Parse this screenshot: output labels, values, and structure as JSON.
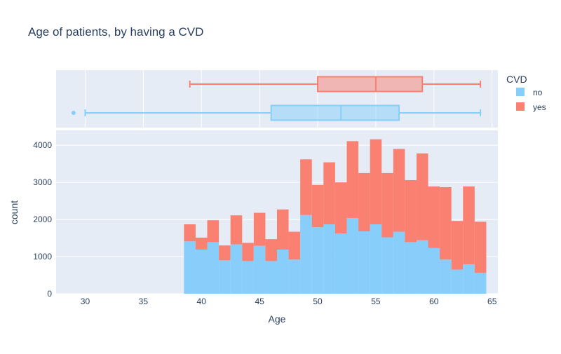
{
  "chart_data": {
    "type": "bar",
    "title": "Age of patients, by having a CVD",
    "xlabel": "Age",
    "ylabel": "count",
    "barmode": "stack",
    "xlim": [
      27.5,
      65.5
    ],
    "ylim": [
      0,
      4400
    ],
    "x_ticks": [
      30,
      35,
      40,
      45,
      50,
      55,
      60,
      65
    ],
    "y_ticks": [
      0,
      1000,
      2000,
      3000,
      4000
    ],
    "grid": true,
    "legend": {
      "title": "CVD",
      "placement": "top-right",
      "entries": [
        "no",
        "yes"
      ]
    },
    "colors": {
      "no": "#87cefa",
      "yes": "#fa8072"
    },
    "bins": [
      {
        "x0": 38.5,
        "x1": 39.5,
        "no": 1410,
        "yes": 460
      },
      {
        "x0": 39.5,
        "x1": 40.5,
        "no": 1190,
        "yes": 320
      },
      {
        "x0": 40.5,
        "x1": 41.5,
        "no": 1390,
        "yes": 590
      },
      {
        "x0": 41.5,
        "x1": 42.5,
        "no": 900,
        "yes": 400
      },
      {
        "x0": 42.5,
        "x1": 43.5,
        "no": 1330,
        "yes": 780
      },
      {
        "x0": 43.5,
        "x1": 44.5,
        "no": 880,
        "yes": 490
      },
      {
        "x0": 44.5,
        "x1": 45.5,
        "no": 1290,
        "yes": 890
      },
      {
        "x0": 45.5,
        "x1": 46.5,
        "no": 880,
        "yes": 590
      },
      {
        "x0": 46.5,
        "x1": 47.5,
        "no": 1190,
        "yes": 1080
      },
      {
        "x0": 47.5,
        "x1": 48.5,
        "no": 920,
        "yes": 750
      },
      {
        "x0": 48.5,
        "x1": 49.5,
        "no": 2120,
        "yes": 1500
      },
      {
        "x0": 49.5,
        "x1": 50.5,
        "no": 1790,
        "yes": 1140
      },
      {
        "x0": 50.5,
        "x1": 51.5,
        "no": 1870,
        "yes": 1670
      },
      {
        "x0": 51.5,
        "x1": 52.5,
        "no": 1620,
        "yes": 1380
      },
      {
        "x0": 52.5,
        "x1": 53.5,
        "no": 2040,
        "yes": 2070
      },
      {
        "x0": 53.5,
        "x1": 54.5,
        "no": 1680,
        "yes": 1570
      },
      {
        "x0": 54.5,
        "x1": 55.5,
        "no": 1870,
        "yes": 2290
      },
      {
        "x0": 55.5,
        "x1": 56.5,
        "no": 1520,
        "yes": 1730
      },
      {
        "x0": 56.5,
        "x1": 57.5,
        "no": 1670,
        "yes": 2230
      },
      {
        "x0": 57.5,
        "x1": 58.5,
        "no": 1390,
        "yes": 1670
      },
      {
        "x0": 58.5,
        "x1": 59.5,
        "no": 1440,
        "yes": 2340
      },
      {
        "x0": 59.5,
        "x1": 60.5,
        "no": 1230,
        "yes": 1660
      },
      {
        "x0": 60.5,
        "x1": 61.5,
        "no": 920,
        "yes": 1950
      },
      {
        "x0": 61.5,
        "x1": 62.5,
        "no": 650,
        "yes": 1310
      },
      {
        "x0": 62.5,
        "x1": 63.5,
        "no": 790,
        "yes": 2100
      },
      {
        "x0": 63.5,
        "x1": 64.5,
        "no": 560,
        "yes": 1380
      }
    ],
    "box_plots": [
      {
        "name": "yes",
        "min": 39,
        "q1": 50,
        "median": 55,
        "q3": 59,
        "max": 64,
        "outliers": []
      },
      {
        "name": "no",
        "min": 30,
        "q1": 46,
        "median": 52,
        "q3": 57,
        "max": 64,
        "outliers": [
          29
        ]
      }
    ]
  }
}
